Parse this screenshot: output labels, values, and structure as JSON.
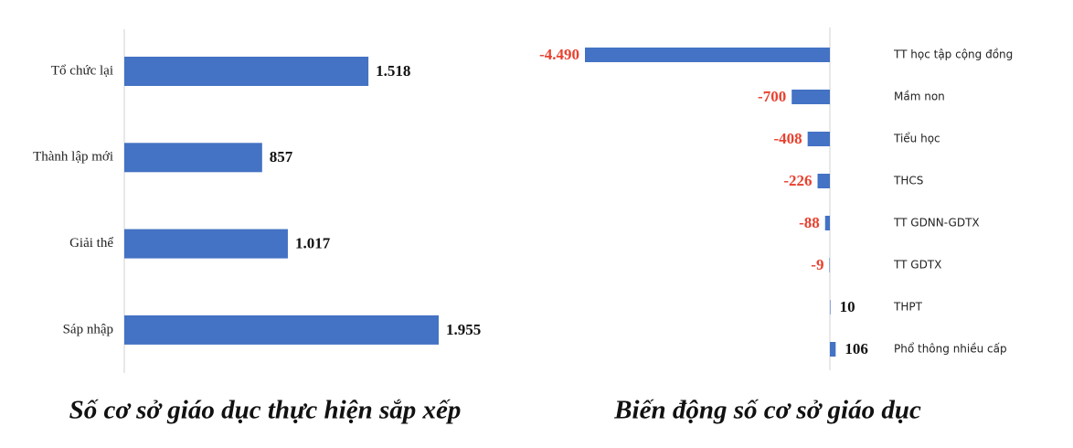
{
  "chart_data": [
    {
      "type": "hbar",
      "title": "Số cơ sở giáo dục thực hiện sắp xếp",
      "categories": [
        "Tổ chức lại",
        "Thành lập mới",
        "Giải thể",
        "Sáp nhập"
      ],
      "values": [
        1518,
        857,
        1017,
        1955
      ],
      "value_labels": [
        "1.518",
        "857",
        "1.017",
        "1.955"
      ],
      "color": "#4472c4"
    },
    {
      "type": "diverging",
      "title": "Biến động số cơ sở giáo dục",
      "categories": [
        "TT học tập cộng đồng",
        "Mầm non",
        "Tiểu học",
        "THCS",
        "TT GDNN-GDTX",
        "TT GDTX",
        "THPT",
        "Phổ thông nhiều cấp"
      ],
      "values": [
        -4490,
        -700,
        -408,
        -226,
        -88,
        -9,
        10,
        106
      ],
      "value_labels": [
        "-4.490",
        "-700",
        "-408",
        "-226",
        "-88",
        "-9",
        "10",
        "106"
      ],
      "color": "#4472c4",
      "negative_label_color": "#e8412f"
    }
  ]
}
